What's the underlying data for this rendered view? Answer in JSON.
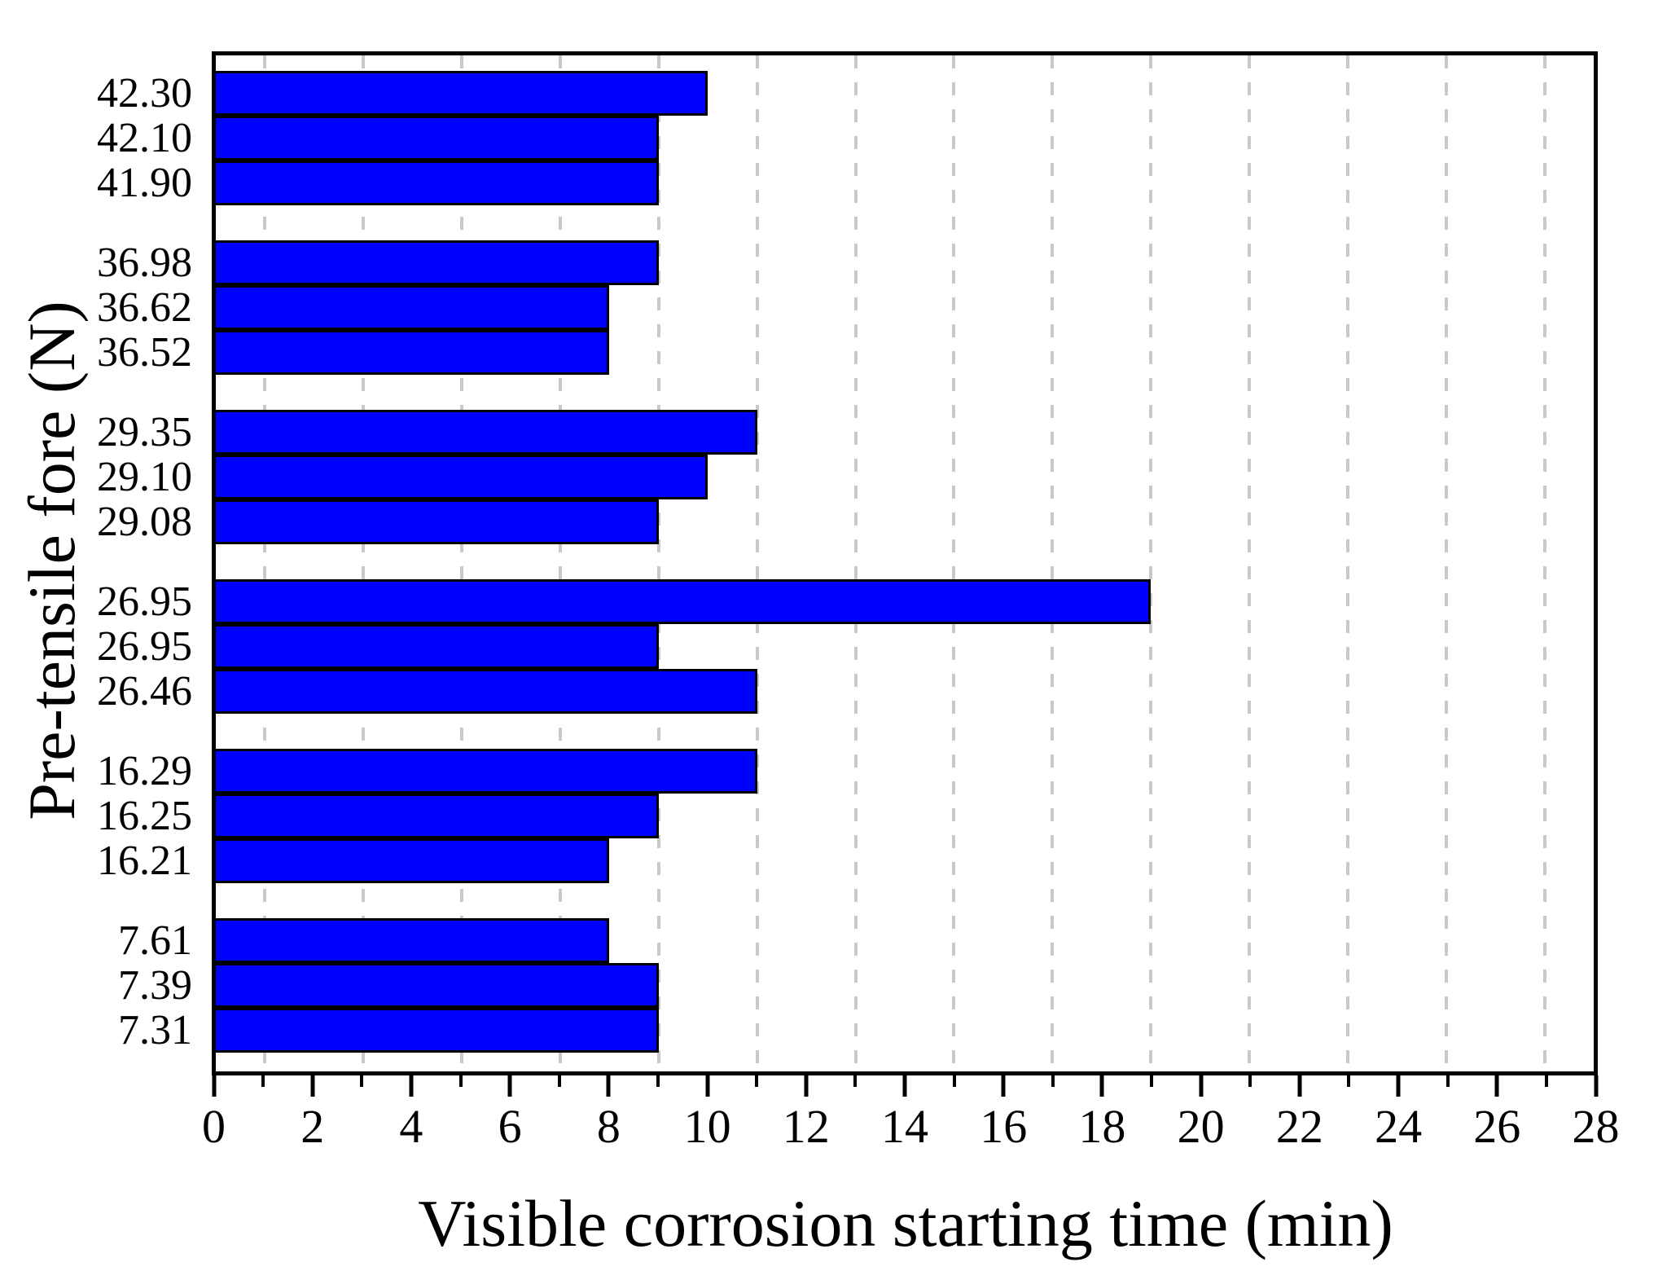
{
  "chart_data": {
    "type": "bar",
    "orientation": "horizontal",
    "title": "",
    "xlabel": "Visible corrosion starting time (min)",
    "ylabel": "Pre-tensile fore (N)",
    "xlim": [
      0,
      28
    ],
    "x_major_ticks": [
      0,
      2,
      4,
      6,
      8,
      10,
      12,
      14,
      16,
      18,
      20,
      22,
      24,
      26,
      28
    ],
    "x_minor_ticks": [
      1,
      3,
      5,
      7,
      9,
      11,
      13,
      15,
      17,
      19,
      21,
      23,
      25,
      27
    ],
    "grid": "vertical dashed gridlines at minor (odd) tick positions",
    "legend_position": "none",
    "bar_color": "#0000ff",
    "bar_border_color": "#000000",
    "gridline_color": "#c9c9c9",
    "frame_color": "#000000",
    "groups": [
      {
        "category_labels": [
          "42.30",
          "42.10",
          "41.90"
        ],
        "values": [
          10,
          9,
          9
        ]
      },
      {
        "category_labels": [
          "36.98",
          "36.62",
          "36.52"
        ],
        "values": [
          9,
          8,
          8
        ]
      },
      {
        "category_labels": [
          "29.35",
          "29.10",
          "29.08"
        ],
        "values": [
          11,
          10,
          9
        ]
      },
      {
        "category_labels": [
          "26.95",
          "26.95",
          "26.46"
        ],
        "values": [
          19,
          9,
          11
        ]
      },
      {
        "category_labels": [
          "16.29",
          "16.25",
          "16.21"
        ],
        "values": [
          11,
          9,
          8
        ]
      },
      {
        "category_labels": [
          "7.61",
          "7.39",
          "7.31"
        ],
        "values": [
          8,
          9,
          9
        ]
      }
    ]
  }
}
